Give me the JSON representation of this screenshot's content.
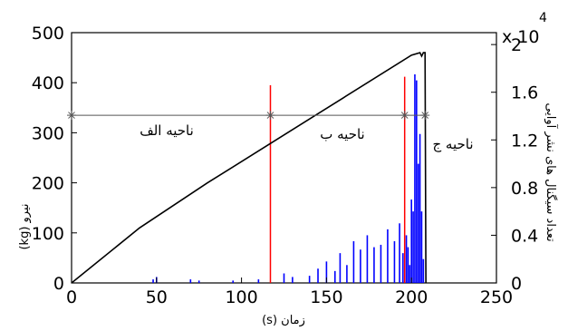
{
  "chart_data": {
    "type": "line",
    "xlabel": "زمان (s)",
    "ylabel_left": "نیرو (kg)",
    "ylabel_right": "تعداد سیگنال های نشر آوایی",
    "x_ticks": [
      "0",
      "50",
      "100",
      "150",
      "200",
      "250"
    ],
    "y_left_ticks": [
      "0",
      "100",
      "200",
      "300",
      "400",
      "500"
    ],
    "y_right_ticks": [
      "0",
      "0.4",
      "0.8",
      "1.2",
      "1.6",
      "2"
    ],
    "right_axis_multiplier": "x 10",
    "right_axis_exponent": "4",
    "xlim": [
      0,
      250
    ],
    "ylim_left": [
      0,
      500
    ],
    "ylim_right": [
      0,
      2.1
    ],
    "grid": false,
    "series": [
      {
        "kind": "force",
        "color": "#000000",
        "x": [
          0,
          40,
          80,
          120,
          160,
          200,
          205,
          206,
          207,
          208,
          208.5
        ],
        "y": [
          0,
          110,
          200,
          285,
          370,
          455,
          460,
          453,
          460,
          460,
          0
        ]
      },
      {
        "kind": "acoustic_emission",
        "color": "#0000ff",
        "x": [
          48,
          50,
          70,
          75,
          95,
          110,
          125,
          130,
          140,
          145,
          150,
          155,
          158,
          162,
          166,
          170,
          174,
          178,
          182,
          186,
          190,
          193,
          195,
          197,
          198,
          199,
          200,
          201,
          202,
          203,
          204,
          205,
          206,
          207
        ],
        "y": [
          0.03,
          0.05,
          0.03,
          0.02,
          0.02,
          0.03,
          0.08,
          0.05,
          0.06,
          0.12,
          0.18,
          0.1,
          0.25,
          0.15,
          0.35,
          0.28,
          0.4,
          0.3,
          0.32,
          0.45,
          0.35,
          0.5,
          0.25,
          0.4,
          0.3,
          0.15,
          0.7,
          0.6,
          1.75,
          1.7,
          1.0,
          1.25,
          0.6,
          0.2
        ]
      }
    ],
    "markers": {
      "color": "#ff0000",
      "lines": [
        {
          "x": 117,
          "y_top": 395
        },
        {
          "x": 196,
          "y_top": 412
        }
      ]
    },
    "regions": {
      "y_level": 335,
      "x_points": [
        0,
        117,
        196,
        208
      ],
      "labels": [
        "ناحیه الف",
        "ناحیه ب",
        "ناحیه ج"
      ]
    }
  }
}
